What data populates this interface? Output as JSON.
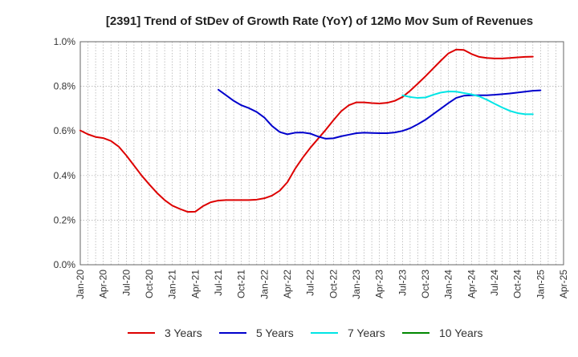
{
  "chart_data": {
    "type": "line",
    "title": "[2391]  Trend of StDev of Growth Rate (YoY) of 12Mo Mov Sum of Revenues",
    "xlabel": "",
    "ylabel": "",
    "ylim": [
      0,
      1.0
    ],
    "y_ticks": [
      {
        "value": 0.0,
        "label": "0.0%"
      },
      {
        "value": 0.2,
        "label": "0.2%"
      },
      {
        "value": 0.4,
        "label": "0.4%"
      },
      {
        "value": 0.6,
        "label": "0.6%"
      },
      {
        "value": 0.8,
        "label": "0.8%"
      },
      {
        "value": 1.0,
        "label": "1.0%"
      }
    ],
    "x_tick_labels": [
      "Jan-20",
      "Apr-20",
      "Jul-20",
      "Oct-20",
      "Jan-21",
      "Apr-21",
      "Jul-21",
      "Oct-21",
      "Jan-22",
      "Apr-22",
      "Jul-22",
      "Oct-22",
      "Jan-23",
      "Apr-23",
      "Jul-23",
      "Oct-23",
      "Jan-24",
      "Apr-24",
      "Jul-24",
      "Oct-24",
      "Jan-25",
      "Apr-25"
    ],
    "x_range_months": [
      0,
      63
    ],
    "grid": true,
    "legend_position": "bottom",
    "series": [
      {
        "name": "3 Years",
        "color": "#dd0000",
        "points": [
          [
            0,
            0.602
          ],
          [
            1,
            0.585
          ],
          [
            2,
            0.573
          ],
          [
            3,
            0.568
          ],
          [
            4,
            0.555
          ],
          [
            5,
            0.53
          ],
          [
            6,
            0.49
          ],
          [
            7,
            0.445
          ],
          [
            8,
            0.4
          ],
          [
            9,
            0.36
          ],
          [
            10,
            0.322
          ],
          [
            11,
            0.29
          ],
          [
            12,
            0.265
          ],
          [
            13,
            0.25
          ],
          [
            14,
            0.237
          ],
          [
            15,
            0.238
          ],
          [
            16,
            0.263
          ],
          [
            17,
            0.28
          ],
          [
            18,
            0.288
          ],
          [
            19,
            0.29
          ],
          [
            20,
            0.29
          ],
          [
            21,
            0.29
          ],
          [
            22,
            0.29
          ],
          [
            23,
            0.292
          ],
          [
            24,
            0.298
          ],
          [
            25,
            0.31
          ],
          [
            26,
            0.332
          ],
          [
            27,
            0.37
          ],
          [
            28,
            0.43
          ],
          [
            29,
            0.48
          ],
          [
            30,
            0.525
          ],
          [
            31,
            0.565
          ],
          [
            32,
            0.605
          ],
          [
            33,
            0.648
          ],
          [
            34,
            0.688
          ],
          [
            35,
            0.715
          ],
          [
            36,
            0.728
          ],
          [
            37,
            0.728
          ],
          [
            38,
            0.725
          ],
          [
            39,
            0.723
          ],
          [
            40,
            0.726
          ],
          [
            41,
            0.735
          ],
          [
            42,
            0.752
          ],
          [
            43,
            0.78
          ],
          [
            44,
            0.812
          ],
          [
            45,
            0.845
          ],
          [
            46,
            0.88
          ],
          [
            47,
            0.915
          ],
          [
            48,
            0.948
          ],
          [
            49,
            0.965
          ],
          [
            50,
            0.963
          ],
          [
            51,
            0.945
          ],
          [
            52,
            0.932
          ],
          [
            53,
            0.927
          ],
          [
            54,
            0.925
          ],
          [
            55,
            0.925
          ],
          [
            56,
            0.927
          ],
          [
            57,
            0.93
          ],
          [
            58,
            0.932
          ],
          [
            59,
            0.933
          ]
        ]
      },
      {
        "name": "5 Years",
        "color": "#0000cc",
        "points": [
          [
            18,
            0.785
          ],
          [
            19,
            0.76
          ],
          [
            20,
            0.735
          ],
          [
            21,
            0.715
          ],
          [
            22,
            0.702
          ],
          [
            23,
            0.685
          ],
          [
            24,
            0.66
          ],
          [
            25,
            0.622
          ],
          [
            26,
            0.595
          ],
          [
            27,
            0.585
          ],
          [
            28,
            0.592
          ],
          [
            29,
            0.593
          ],
          [
            30,
            0.588
          ],
          [
            31,
            0.575
          ],
          [
            32,
            0.565
          ],
          [
            33,
            0.567
          ],
          [
            34,
            0.576
          ],
          [
            35,
            0.583
          ],
          [
            36,
            0.59
          ],
          [
            37,
            0.592
          ],
          [
            38,
            0.591
          ],
          [
            39,
            0.59
          ],
          [
            40,
            0.59
          ],
          [
            41,
            0.593
          ],
          [
            42,
            0.6
          ],
          [
            43,
            0.612
          ],
          [
            44,
            0.63
          ],
          [
            45,
            0.65
          ],
          [
            46,
            0.675
          ],
          [
            47,
            0.7
          ],
          [
            48,
            0.725
          ],
          [
            49,
            0.748
          ],
          [
            50,
            0.758
          ],
          [
            51,
            0.76
          ],
          [
            52,
            0.76
          ],
          [
            53,
            0.76
          ],
          [
            54,
            0.762
          ],
          [
            55,
            0.765
          ],
          [
            56,
            0.768
          ],
          [
            57,
            0.772
          ],
          [
            58,
            0.776
          ],
          [
            59,
            0.78
          ],
          [
            60,
            0.782
          ]
        ]
      },
      {
        "name": "7 Years",
        "color": "#00e5e5",
        "points": [
          [
            42,
            0.76
          ],
          [
            43,
            0.752
          ],
          [
            44,
            0.748
          ],
          [
            45,
            0.75
          ],
          [
            46,
            0.762
          ],
          [
            47,
            0.772
          ],
          [
            48,
            0.777
          ],
          [
            49,
            0.776
          ],
          [
            50,
            0.77
          ],
          [
            51,
            0.764
          ],
          [
            52,
            0.755
          ],
          [
            53,
            0.74
          ],
          [
            54,
            0.722
          ],
          [
            55,
            0.705
          ],
          [
            56,
            0.69
          ],
          [
            57,
            0.68
          ],
          [
            58,
            0.675
          ],
          [
            59,
            0.675
          ]
        ]
      },
      {
        "name": "10 Years",
        "color": "#008800",
        "points": []
      }
    ]
  }
}
